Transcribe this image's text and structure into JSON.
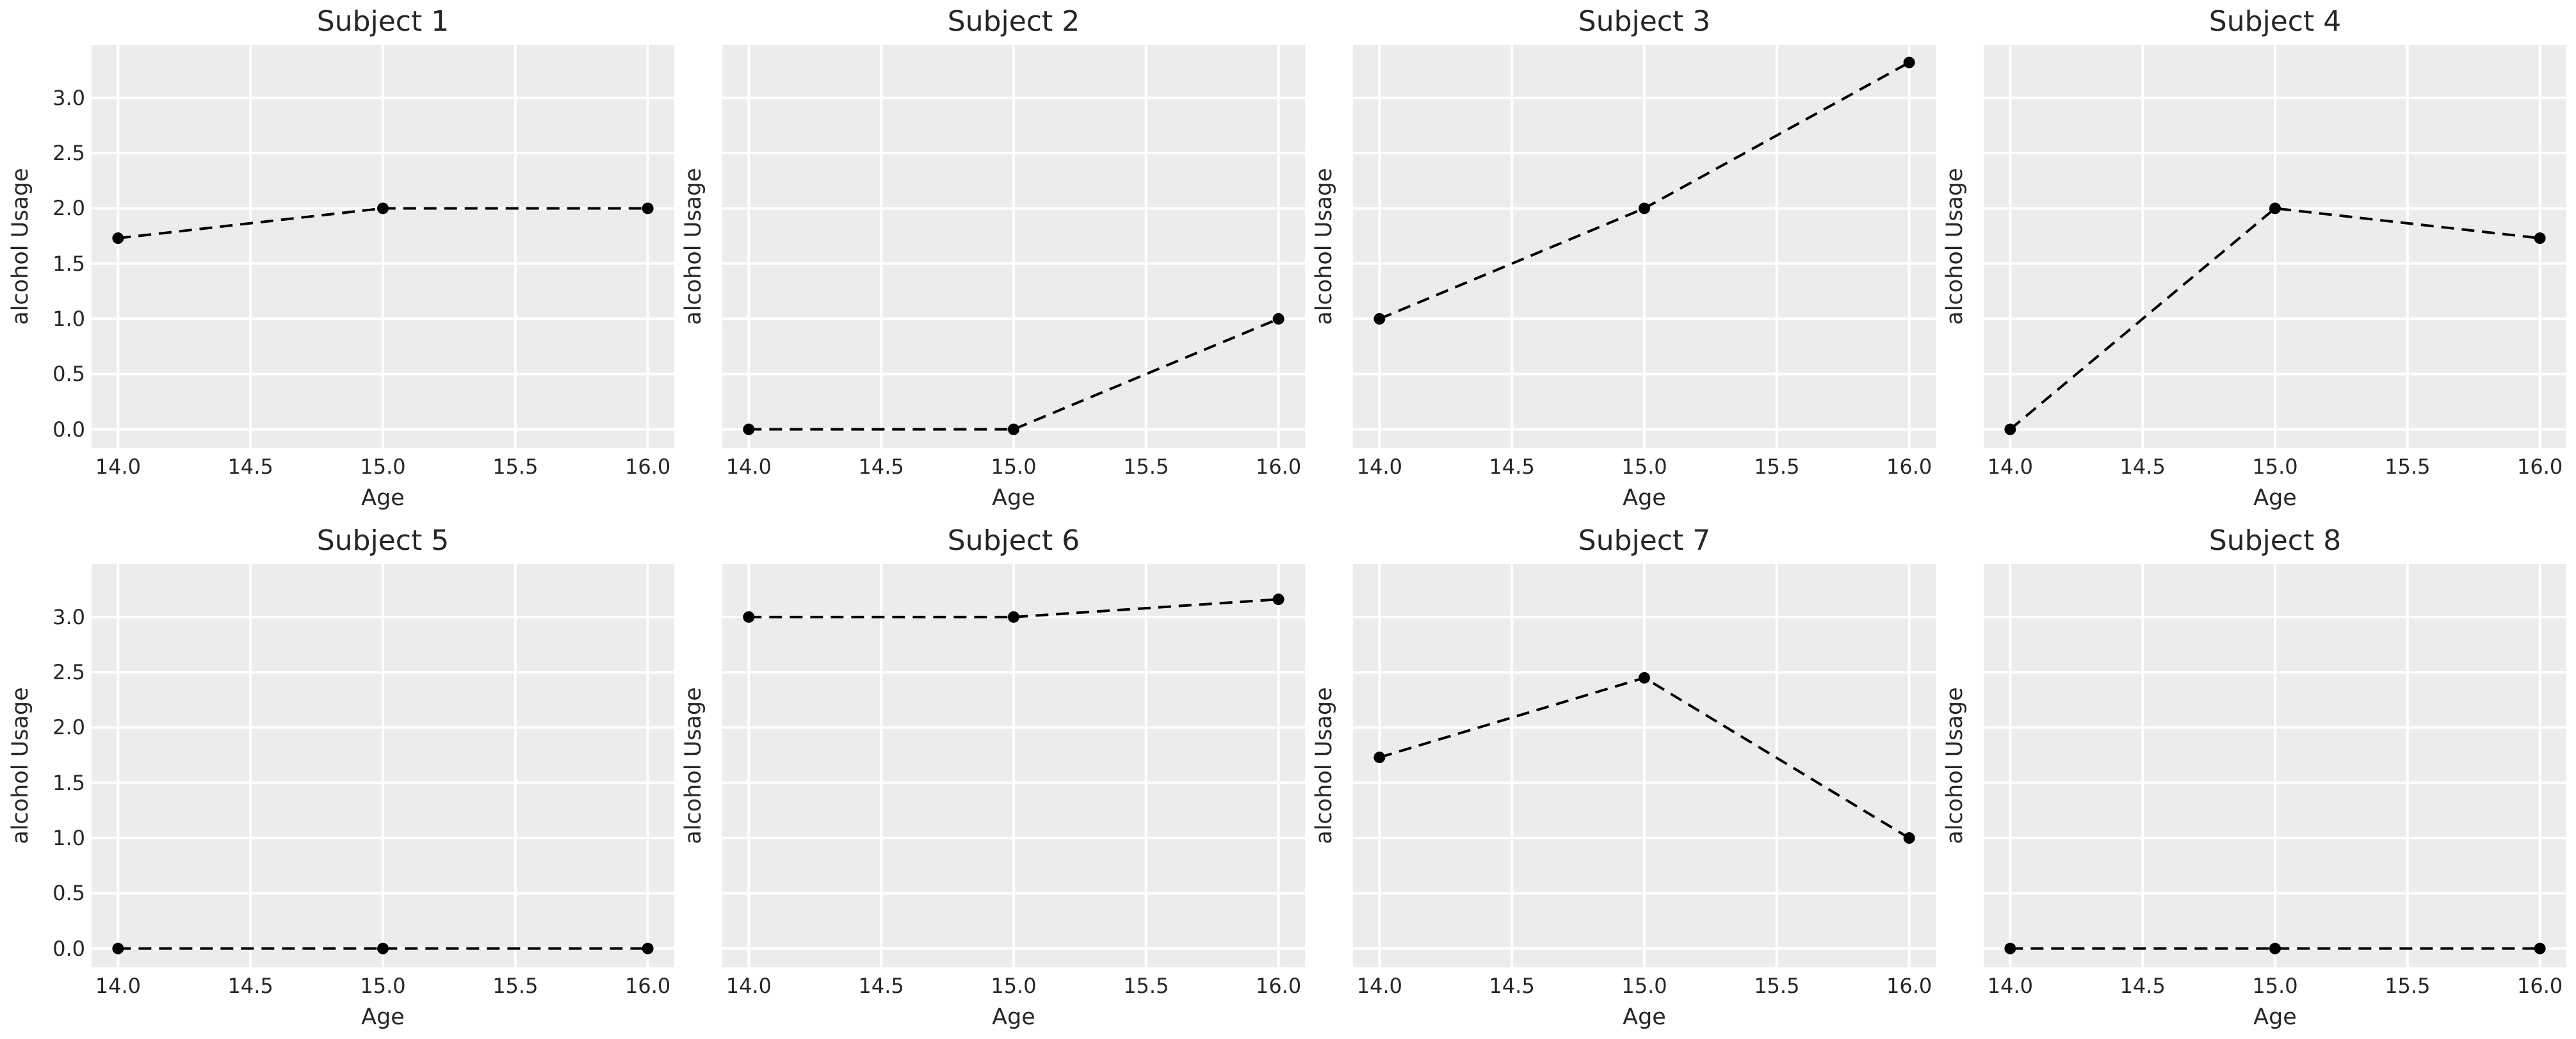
{
  "chart_data": {
    "type": "line",
    "layout": {
      "rows": 2,
      "cols": 4
    },
    "x": [
      14,
      15,
      16
    ],
    "xlabel": "Age",
    "ylabel": "alcohol Usage",
    "xticks": [
      14.0,
      14.5,
      15.0,
      15.5,
      16.0
    ],
    "yticks": [
      0.0,
      0.5,
      1.0,
      1.5,
      2.0,
      2.5,
      3.0
    ],
    "xtick_labels": [
      "14.0",
      "14.5",
      "15.0",
      "15.5",
      "16.0"
    ],
    "ytick_labels": [
      "0.0",
      "0.5",
      "1.0",
      "1.5",
      "2.0",
      "2.5",
      "3.0"
    ],
    "xlim": [
      13.9,
      16.1
    ],
    "ylim": [
      -0.17,
      3.48
    ],
    "grid": true,
    "legend": "none",
    "line_style": "dashed",
    "marker": "circle",
    "line_color": "#000000",
    "marker_color": "#000000",
    "panel_bg": "#ECECEC",
    "grid_color": "#FFFFFF",
    "text_color": "#262626",
    "y_tick_labels_shown": "first column of each row only",
    "series": [
      {
        "name": "Subject 1",
        "values": [
          1.73,
          2.0,
          2.0
        ]
      },
      {
        "name": "Subject 2",
        "values": [
          0.0,
          0.0,
          1.0
        ]
      },
      {
        "name": "Subject 3",
        "values": [
          1.0,
          2.0,
          3.32
        ]
      },
      {
        "name": "Subject 4",
        "values": [
          0.0,
          2.0,
          1.73
        ]
      },
      {
        "name": "Subject 5",
        "values": [
          0.0,
          0.0,
          0.0
        ]
      },
      {
        "name": "Subject 6",
        "values": [
          3.0,
          3.0,
          3.16
        ]
      },
      {
        "name": "Subject 7",
        "values": [
          1.73,
          2.45,
          1.0
        ]
      },
      {
        "name": "Subject 8",
        "values": [
          0.0,
          0.0,
          0.0
        ]
      }
    ]
  }
}
